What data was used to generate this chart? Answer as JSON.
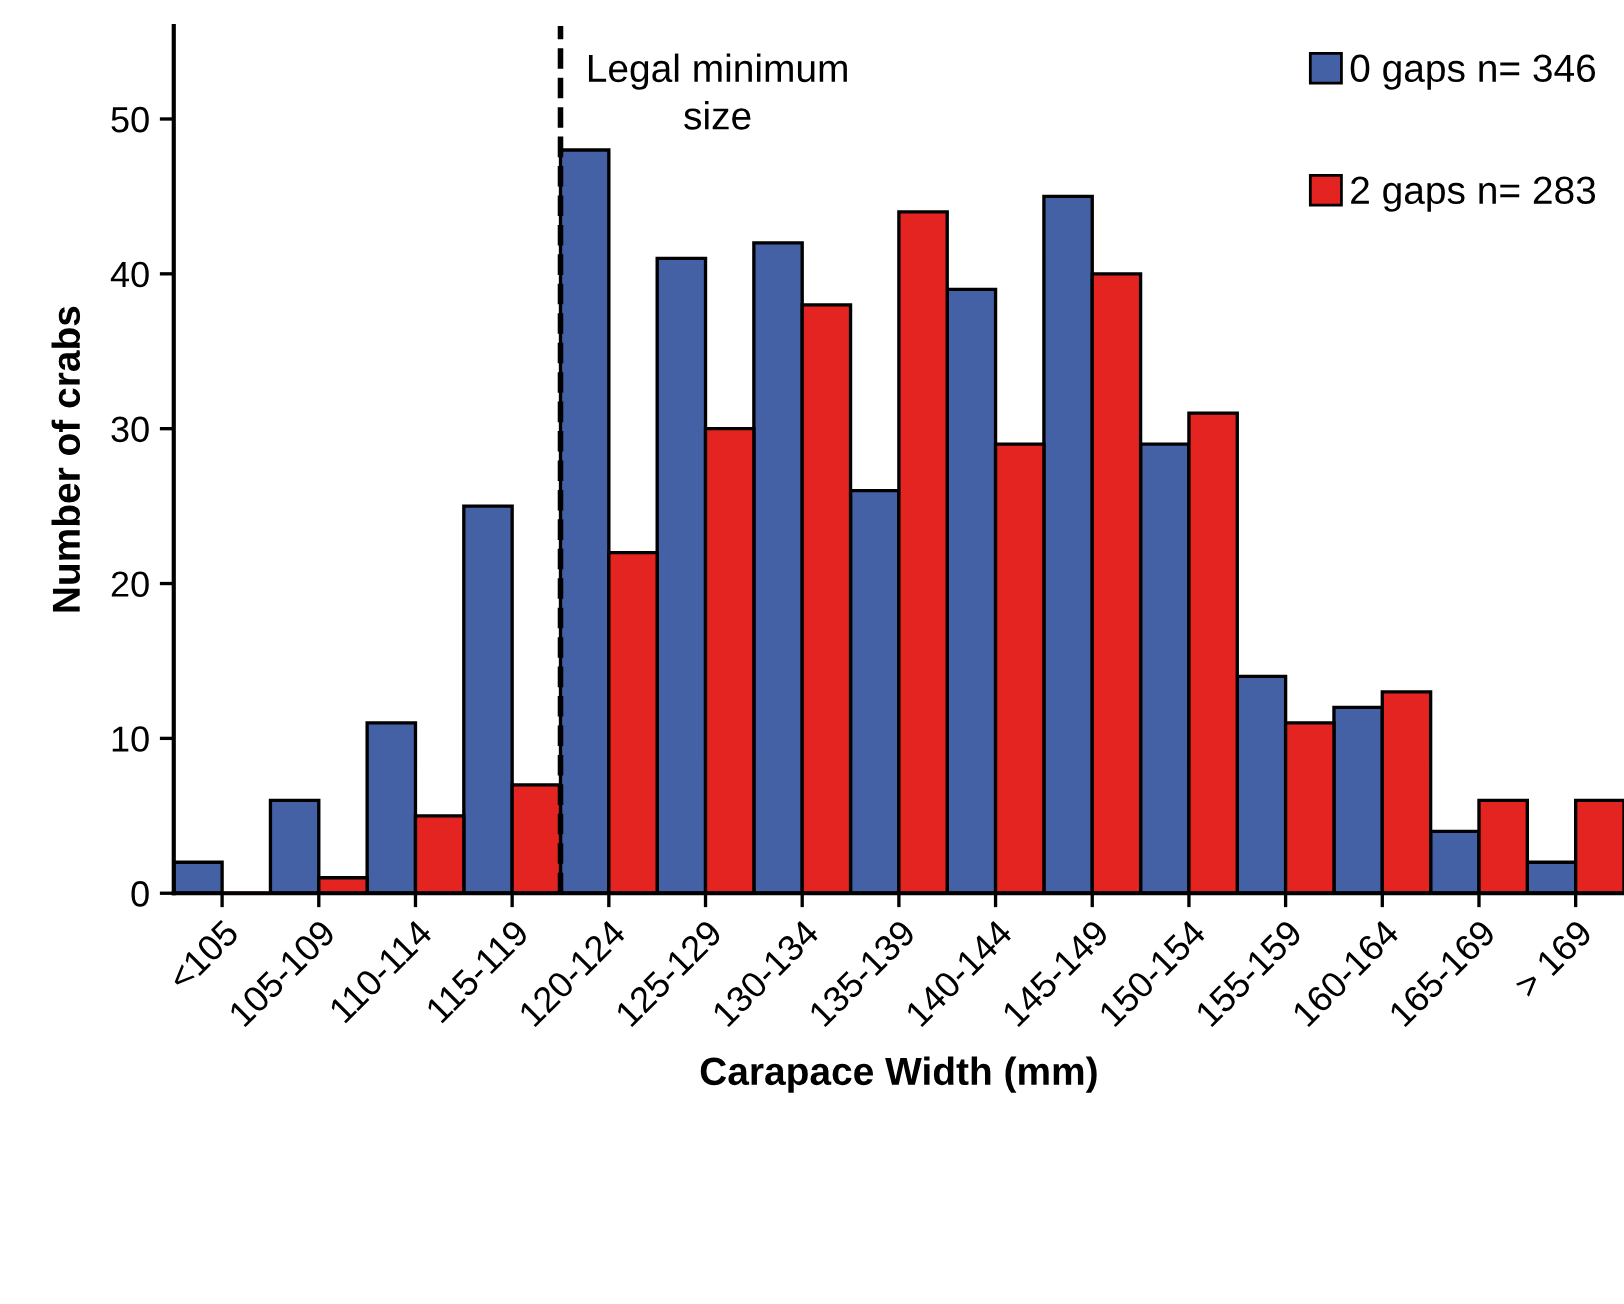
{
  "chart_data": {
    "type": "bar",
    "xlabel": "Carapace Width (mm)",
    "ylabel": "Number of crabs",
    "categories": [
      "<105",
      "105-109",
      "110-114",
      "115-119",
      "120-124",
      "125-129",
      "130-134",
      "135-139",
      "140-144",
      "145-149",
      "150-154",
      "155-159",
      "160-164",
      "165-169",
      "> 169"
    ],
    "series": [
      {
        "name": "0 gaps n= 346",
        "color": "#4561a6",
        "values": [
          2,
          6,
          11,
          25,
          48,
          41,
          42,
          26,
          39,
          45,
          29,
          14,
          12,
          4,
          2
        ]
      },
      {
        "name": "2 gaps n= 283",
        "color": "#e32421",
        "values": [
          0,
          1,
          5,
          7,
          22,
          30,
          38,
          44,
          29,
          40,
          31,
          11,
          13,
          6,
          6
        ]
      }
    ],
    "ylim": [
      0,
      56
    ],
    "yticks": [
      0,
      10,
      20,
      30,
      40,
      50
    ],
    "grid": false,
    "legend": "top right",
    "annotations": [
      "Legal minimum size"
    ]
  }
}
